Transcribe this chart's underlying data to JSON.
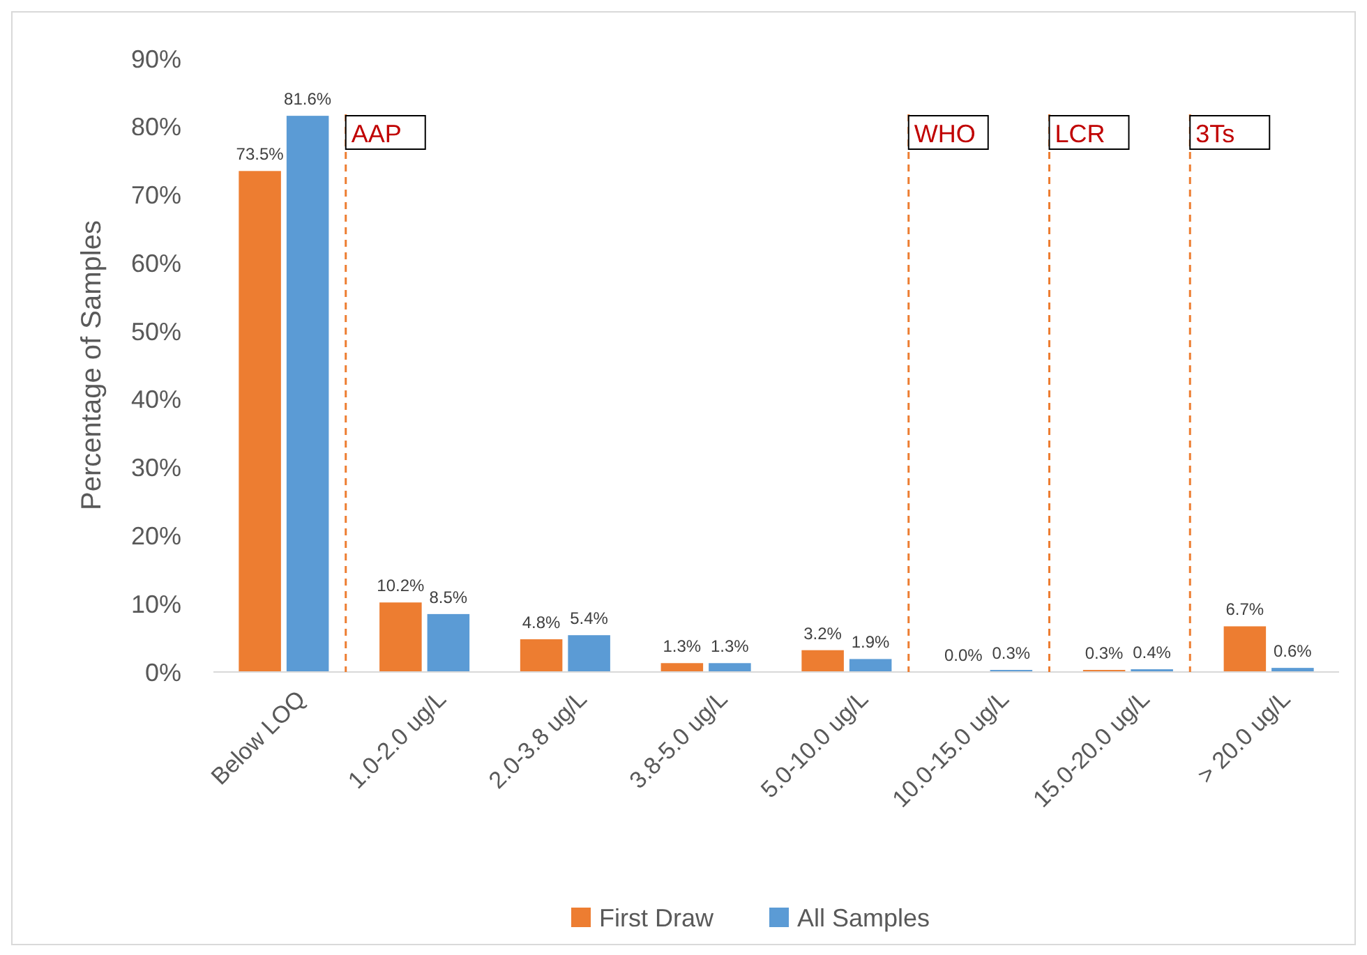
{
  "chart_data": {
    "type": "bar",
    "ylabel": "Percentage of Samples",
    "categories": [
      "Below LOQ",
      "1.0-2.0 ug/L",
      "2.0-3.8 ug/L",
      "3.8-5.0 ug/L",
      "5.0-10.0 ug/L",
      "10.0-15.0 ug/L",
      "15.0-20.0 ug/L",
      "> 20.0 ug/L"
    ],
    "series": [
      {
        "name": "First Draw",
        "color": "#ed7d31",
        "values": [
          73.5,
          10.2,
          4.8,
          1.3,
          3.2,
          0.0,
          0.3,
          6.7
        ],
        "value_labels": [
          "73.5%",
          "10.2%",
          "4.8%",
          "1.3%",
          "3.2%",
          "0.0%",
          "0.3%",
          "6.7%"
        ]
      },
      {
        "name": "All Samples",
        "color": "#5b9bd5",
        "values": [
          81.6,
          8.5,
          5.4,
          1.3,
          1.9,
          0.3,
          0.4,
          0.6
        ],
        "value_labels": [
          "81.6%",
          "8.5%",
          "5.4%",
          "1.3%",
          "1.9%",
          "0.3%",
          "0.4%",
          "0.6%"
        ]
      }
    ],
    "ylim": [
      0,
      90
    ],
    "yticks": [
      {
        "value": 0,
        "label": "0%"
      },
      {
        "value": 10,
        "label": "10%"
      },
      {
        "value": 20,
        "label": "20%"
      },
      {
        "value": 30,
        "label": "30%"
      },
      {
        "value": 40,
        "label": "40%"
      },
      {
        "value": 50,
        "label": "50%"
      },
      {
        "value": 60,
        "label": "60%"
      },
      {
        "value": 70,
        "label": "70%"
      },
      {
        "value": 80,
        "label": "80%"
      },
      {
        "value": 90,
        "label": "90%"
      }
    ],
    "ref_lines": [
      {
        "axis": "x",
        "value": "1.0-2.0 ug/L",
        "label": "AAP",
        "color": "#ed7d31",
        "line_style": "dashed"
      },
      {
        "axis": "x",
        "value": "10.0-15.0 ug/L",
        "label": "WHO",
        "color": "#ed7d31",
        "line_style": "dashed"
      },
      {
        "axis": "x",
        "value": "15.0-20.0 ug/L",
        "label": "LCR",
        "color": "#ed7d31",
        "line_style": "dashed"
      },
      {
        "axis": "x",
        "value": "> 20.0 ug/L",
        "label": "3Ts",
        "color": "#ed7d31",
        "line_style": "dashed"
      }
    ],
    "grid": false,
    "legend": "bottom"
  }
}
